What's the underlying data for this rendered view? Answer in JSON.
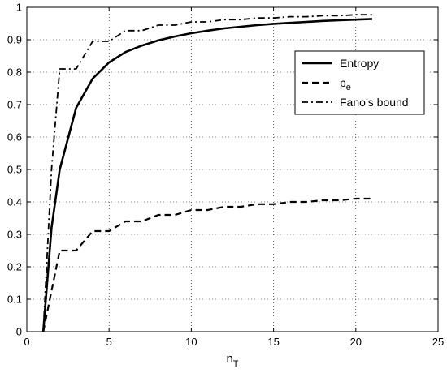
{
  "chart_data": {
    "type": "line",
    "title": "",
    "xlabel": "n",
    "xlabel_subscript": "T",
    "ylabel": "",
    "xlim": [
      0,
      25
    ],
    "ylim": [
      0,
      1
    ],
    "xticks": [
      "0",
      "5",
      "10",
      "15",
      "20",
      "25"
    ],
    "yticks": [
      "0",
      "0.1",
      "0.2",
      "0.3",
      "0.4",
      "0.5",
      "0.6",
      "0.7",
      "0.8",
      "0.9",
      "1"
    ],
    "grid": true,
    "legend_position": "upper-right",
    "series": [
      {
        "name": "Entropy",
        "style": "solid",
        "x": [
          1,
          1.5,
          2,
          3,
          4,
          5,
          6,
          7,
          8,
          9,
          10,
          11,
          12,
          13,
          14,
          15,
          16,
          17,
          18,
          19,
          20,
          21
        ],
        "y": [
          0,
          0.32,
          0.5,
          0.69,
          0.78,
          0.83,
          0.862,
          0.882,
          0.898,
          0.91,
          0.92,
          0.928,
          0.935,
          0.94,
          0.945,
          0.949,
          0.952,
          0.955,
          0.958,
          0.96,
          0.962,
          0.964
        ]
      },
      {
        "name": "p",
        "name_subscript": "e",
        "style": "dashed",
        "x": [
          1,
          2,
          3,
          4,
          5,
          6,
          7,
          8,
          9,
          10,
          11,
          12,
          13,
          14,
          15,
          16,
          17,
          18,
          19,
          20,
          21
        ],
        "y": [
          0,
          0.25,
          0.25,
          0.31,
          0.31,
          0.34,
          0.34,
          0.36,
          0.36,
          0.375,
          0.375,
          0.385,
          0.385,
          0.393,
          0.393,
          0.4,
          0.4,
          0.405,
          0.405,
          0.41,
          0.41
        ]
      },
      {
        "name": "Fano’s bound",
        "style": "dashdot",
        "x": [
          1,
          1.5,
          2,
          3,
          4,
          5,
          6,
          7,
          8,
          9,
          10,
          11,
          12,
          13,
          14,
          15,
          16,
          17,
          18,
          19,
          20,
          21
        ],
        "y": [
          0,
          0.5,
          0.81,
          0.81,
          0.895,
          0.895,
          0.928,
          0.928,
          0.945,
          0.945,
          0.955,
          0.955,
          0.962,
          0.962,
          0.967,
          0.967,
          0.971,
          0.971,
          0.974,
          0.974,
          0.977,
          0.977
        ]
      }
    ]
  }
}
